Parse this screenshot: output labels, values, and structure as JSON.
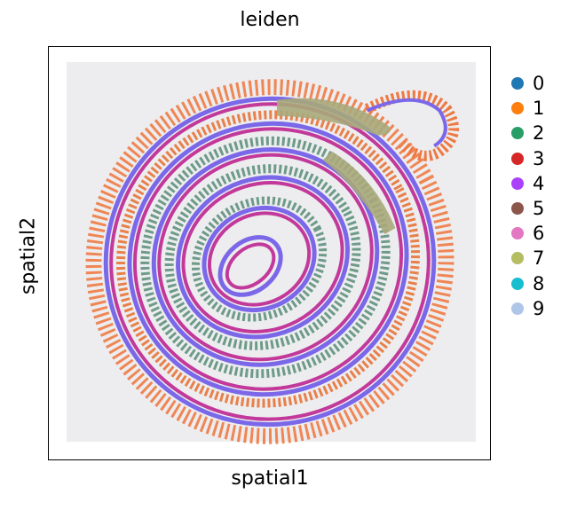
{
  "title": "leiden",
  "xlabel": "spatial1",
  "ylabel": "spatial2",
  "legend": [
    {
      "label": "0",
      "color": "#1f77b4"
    },
    {
      "label": "1",
      "color": "#ff7f0e"
    },
    {
      "label": "2",
      "color": "#279e68"
    },
    {
      "label": "3",
      "color": "#d62728"
    },
    {
      "label": "4",
      "color": "#aa40fc"
    },
    {
      "label": "5",
      "color": "#8c564b"
    },
    {
      "label": "6",
      "color": "#e377c2"
    },
    {
      "label": "7",
      "color": "#b5bd61"
    },
    {
      "label": "8",
      "color": "#17becf"
    },
    {
      "label": "9",
      "color": "#aec7e8"
    }
  ]
}
